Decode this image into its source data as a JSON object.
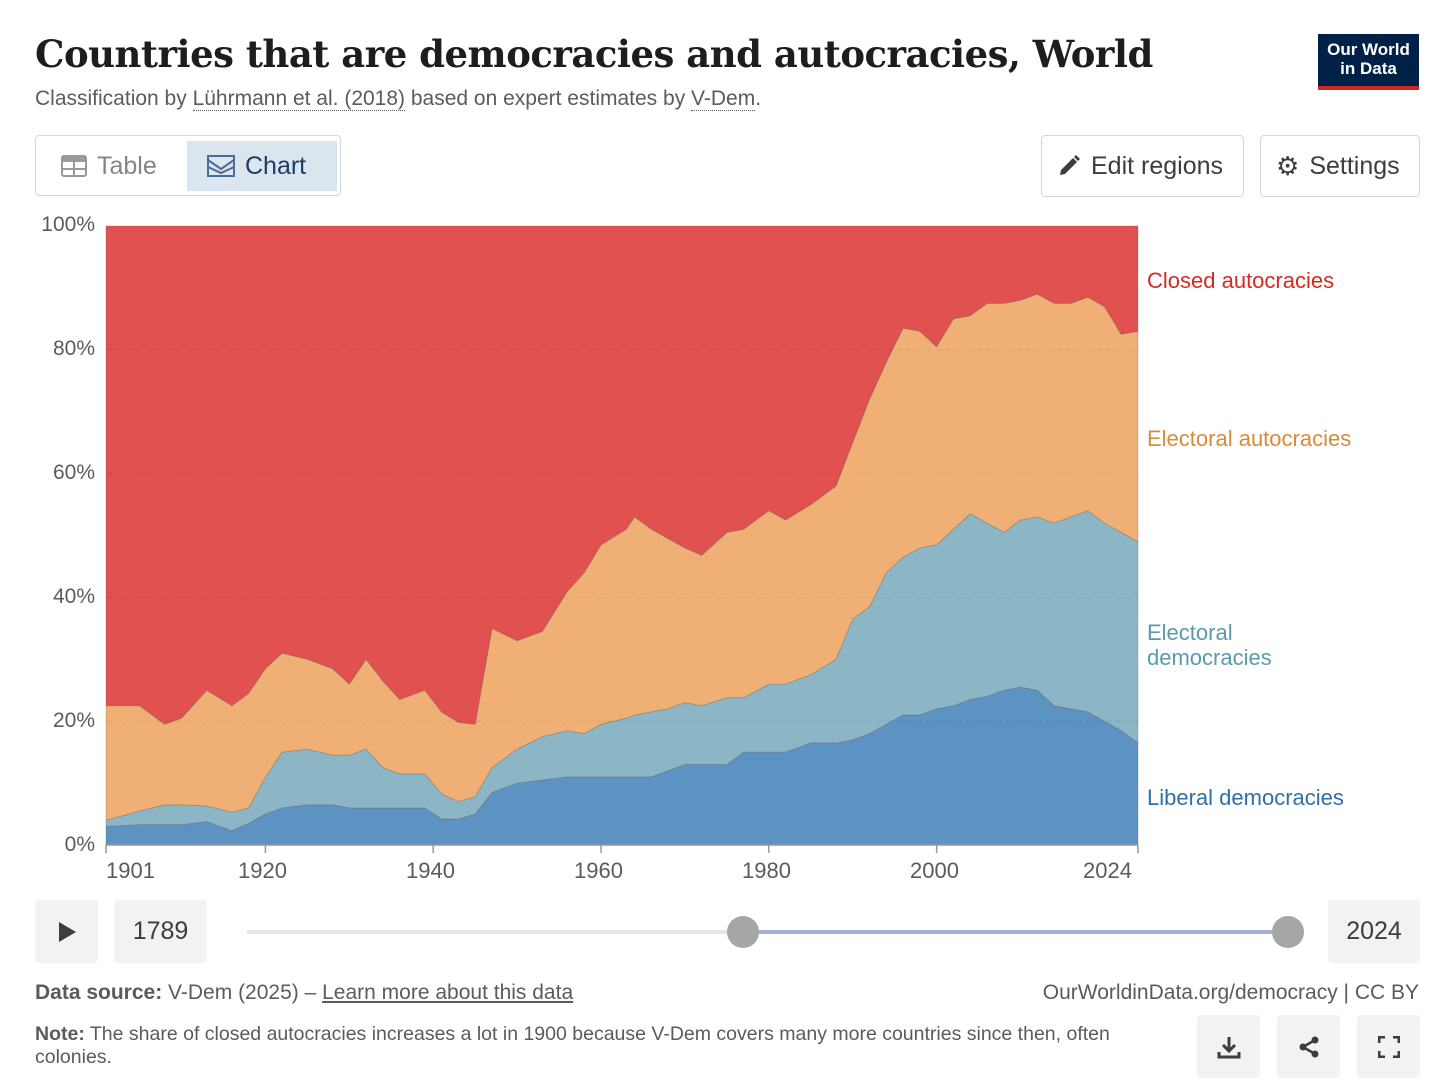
{
  "header": {
    "title": "Countries that are democracies and autocracies, World",
    "subtitle_prefix": "Classification by ",
    "subtitle_link1": "Lührmann et al. (2018)",
    "subtitle_mid": " based on expert estimates by ",
    "subtitle_link2": "V-Dem",
    "subtitle_end": ".",
    "logo_line1": "Our World",
    "logo_line2": "in Data"
  },
  "toolbar": {
    "tab_table": "Table",
    "tab_chart": "Chart",
    "edit_regions": "Edit regions",
    "settings": "Settings"
  },
  "timeline": {
    "start_year": "1789",
    "end_year": "2024",
    "selected_start_fraction": 0.47,
    "selected_end_fraction": 1.0
  },
  "footer": {
    "source_label": "Data source:",
    "source_text": " V-Dem (2025) – ",
    "learn_more": "Learn more about this data",
    "url": "OurWorldinData.org/democracy | CC BY",
    "note_label": "Note:",
    "note_text": " The share of closed autocracies increases a lot in 1900 because V-Dem covers many more countries since then, often colonies."
  },
  "colors": {
    "closed": "#e05150",
    "electoral_aut": "#f0b075",
    "electoral_dem": "#8cb5c5",
    "liberal": "#5d93c3"
  },
  "chart_data": {
    "type": "area",
    "stacked": true,
    "title": "Countries that are democracies and autocracies, World",
    "ylabel": "",
    "ylim": [
      0,
      100
    ],
    "yticks": [
      "0%",
      "20%",
      "40%",
      "60%",
      "80%",
      "100%"
    ],
    "xticks": [
      "1901",
      "1920",
      "1940",
      "1960",
      "1980",
      "2000",
      "2024"
    ],
    "xtick_values": [
      1901,
      1920,
      1940,
      1960,
      1980,
      2000,
      2024
    ],
    "xlim": [
      1901,
      2024
    ],
    "x": [
      1901,
      1905,
      1908,
      1910,
      1913,
      1916,
      1918,
      1920,
      1922,
      1925,
      1928,
      1930,
      1932,
      1934,
      1936,
      1939,
      1941,
      1943,
      1945,
      1947,
      1950,
      1953,
      1956,
      1958,
      1960,
      1963,
      1964,
      1966,
      1968,
      1970,
      1972,
      1975,
      1977,
      1980,
      1982,
      1985,
      1988,
      1990,
      1992,
      1994,
      1996,
      1998,
      2000,
      2002,
      2004,
      2006,
      2008,
      2010,
      2012,
      2014,
      2016,
      2018,
      2020,
      2022,
      2024
    ],
    "series": [
      {
        "name": "Liberal democracies",
        "label": "Liberal democracies",
        "color": "#5d93c3",
        "label_color": "#2f6faa",
        "values": [
          3,
          3.3,
          3.3,
          3.3,
          3.8,
          2.3,
          3.5,
          5,
          6,
          6.5,
          6.5,
          6,
          6,
          6,
          6,
          6,
          4.2,
          4.2,
          5,
          8.5,
          10,
          10.5,
          11,
          11,
          11,
          11,
          11,
          11,
          12,
          13,
          13,
          13,
          15,
          15,
          15,
          16.5,
          16.5,
          17,
          18,
          19.5,
          21,
          21,
          22,
          22.5,
          23.5,
          24,
          25,
          25.5,
          25,
          22.5,
          22,
          21.5,
          20,
          18.5,
          16.5
        ]
      },
      {
        "name": "Electoral democracies",
        "label_line1": "Electoral",
        "label_line2": "democracies",
        "color": "#8cb5c5",
        "label_color": "#5b9aad",
        "values": [
          1,
          2.2,
          3.2,
          3.2,
          2.5,
          3,
          2.5,
          6,
          9,
          9,
          8,
          8.5,
          9.5,
          6.5,
          5.5,
          5.5,
          4.1,
          2.8,
          2.8,
          4,
          5.5,
          7,
          7.5,
          7,
          8.5,
          9.5,
          10,
          10.5,
          10,
          10,
          9.5,
          10.8,
          8.8,
          11,
          11,
          11,
          13.5,
          19.5,
          20.5,
          24.5,
          25.5,
          27,
          26.5,
          28.5,
          30,
          28,
          25.5,
          27,
          28,
          29.5,
          31,
          32.5,
          32,
          32,
          32.5
        ]
      },
      {
        "name": "Electoral autocracies",
        "label": "Electoral autocracies",
        "color": "#f0b075",
        "label_color": "#d98b3a",
        "values": [
          18.5,
          17,
          13,
          14,
          18.7,
          17.2,
          18.5,
          17.5,
          16,
          14.5,
          14,
          11.5,
          14.5,
          14,
          12,
          13.5,
          13.2,
          12.8,
          11.7,
          22.5,
          17.5,
          17,
          22.5,
          26,
          29,
          30.5,
          32,
          29.5,
          27.5,
          25,
          24.3,
          26.7,
          27.2,
          28,
          26.5,
          27.5,
          28,
          28.5,
          33.5,
          34,
          37,
          35,
          32,
          34,
          32,
          35.5,
          37,
          35.5,
          36,
          35.5,
          34.5,
          34.5,
          35,
          32,
          34
        ]
      },
      {
        "name": "Closed autocracies",
        "label": "Closed autocracies",
        "color": "#e05150",
        "label_color": "#d42b21",
        "values": [
          77.5,
          77.5,
          80.5,
          79.5,
          75,
          77.5,
          75.5,
          71.5,
          69,
          70,
          71.5,
          74,
          70,
          73.5,
          76.5,
          75,
          78.5,
          80.2,
          80.5,
          65,
          67,
          65.5,
          59,
          56,
          51.5,
          49,
          47,
          49,
          50.5,
          52,
          53.2,
          49.5,
          49,
          46,
          47.5,
          45,
          42,
          35,
          28,
          22,
          16.5,
          17,
          19.5,
          15,
          14.5,
          12.5,
          12.5,
          12,
          11,
          12.5,
          12.5,
          11.5,
          13,
          17.5,
          17
        ]
      }
    ],
    "legend": "right-inline",
    "grid": "horizontal dashed"
  }
}
